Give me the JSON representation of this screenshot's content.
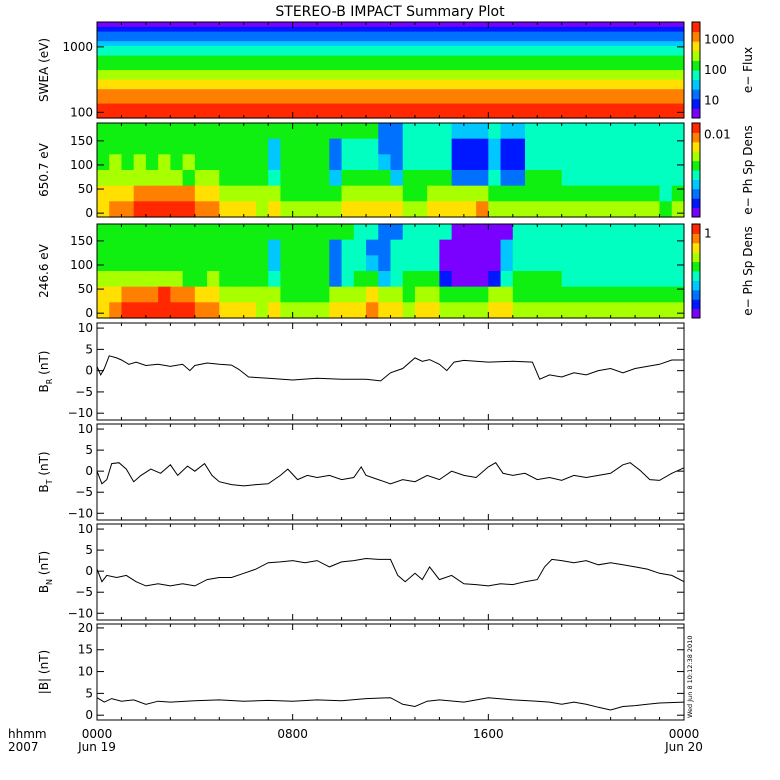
{
  "chart_data": {
    "type": "heatmap",
    "title": "STEREO-B IMPACT Summary Plot",
    "x_axis": {
      "unit_label": "hhmm",
      "year_label": "2007",
      "range_hours": [
        0,
        24
      ],
      "ticks": [
        {
          "hour": 0,
          "label": "0000",
          "sub": "Jun 19"
        },
        {
          "hour": 8,
          "label": "0800",
          "sub": ""
        },
        {
          "hour": 16,
          "label": "1600",
          "sub": ""
        },
        {
          "hour": 24,
          "label": "0000",
          "sub": "Jun 20"
        }
      ]
    },
    "timestamp": "Wed Jun  8 10:12:38 2010",
    "colormap": [
      "#7a00ff",
      "#0018ff",
      "#0070ff",
      "#00c8ff",
      "#00ffc0",
      "#10f010",
      "#a8ff00",
      "#ffe000",
      "#ff8000",
      "#ff2800"
    ],
    "panels": [
      {
        "id": "swea",
        "type": "heatmap",
        "ylabel": "SWEA (eV)",
        "scale": "log",
        "ylim": [
          82,
          2400
        ],
        "yticks": [
          {
            "v": 100,
            "l": "100"
          },
          {
            "v": 1000,
            "l": "1000"
          }
        ],
        "colorbar": {
          "label": "e− Flux",
          "ticks": [
            {
              "f": 0.82,
              "l": "1000"
            },
            {
              "f": 0.5,
              "l": "100"
            },
            {
              "f": 0.18,
              "l": "10"
            }
          ]
        },
        "energy_profile_top_to_bottom": [
          0,
          1,
          2,
          2,
          3,
          4,
          4,
          5,
          5,
          5,
          6,
          6,
          7,
          7,
          8,
          8,
          8,
          9,
          9,
          9
        ]
      },
      {
        "id": "pad650",
        "type": "heatmap",
        "ylabel": "650.7 eV",
        "scale": "linear",
        "ylim": [
          -8,
          187
        ],
        "yticks": [
          {
            "v": 0,
            "l": "0"
          },
          {
            "v": 50,
            "l": "50"
          },
          {
            "v": 100,
            "l": "100"
          },
          {
            "v": 150,
            "l": "150"
          }
        ],
        "colorbar": {
          "label": "e− Ph Sp Dens",
          "ticks": [
            {
              "f": 0.88,
              "l": "0.01"
            }
          ]
        },
        "rows_top_to_bottom": [
          "555555555555555555555552244443334334444444444444",
          "555555555555553555524442244441113114444444444444",
          "565656565555553555524443244441113114444444444444",
          "666666656655554555535555355552224225554444444444",
          "777888887766666555556666655666665555555555555545",
          "788999998877767666667777766777786666666666666656"
        ]
      },
      {
        "id": "pad246",
        "type": "heatmap",
        "ylabel": "246.6 eV",
        "scale": "linear",
        "ylim": [
          -10,
          185
        ],
        "yticks": [
          {
            "v": 0,
            "l": "0"
          },
          {
            "v": 50,
            "l": "50"
          },
          {
            "v": 100,
            "l": "100"
          },
          {
            "v": 150,
            "l": "150"
          }
        ],
        "colorbar": {
          "label": "e− Ph Sp Dens",
          "ticks": [
            {
              "f": 0.9,
              "l": "1"
            }
          ]
        },
        "rows_top_to_bottom": [
          "555555555555555555555442244440000044444444444444",
          "555555555555553555524422444400000344444444444444",
          "555555555555553555524432444400000344444444444444",
          "666666655655554555524553455510001455554444444444",
          "778889887766666555566676656655556655555555555555",
          "789999998877767666677787767766667766666666666666"
        ]
      },
      {
        "id": "br",
        "type": "line",
        "ylabel": "B",
        "ysub": "R",
        "yunit": " (nT)",
        "ylim": [
          -11.6,
          11.2
        ],
        "yticks": [
          {
            "v": -10,
            "l": "−10"
          },
          {
            "v": -5,
            "l": "−5"
          },
          {
            "v": 0,
            "l": "0"
          },
          {
            "v": 5,
            "l": "5"
          },
          {
            "v": 10,
            "l": "10"
          }
        ],
        "points": [
          [
            0,
            1
          ],
          [
            0.15,
            -1
          ],
          [
            0.3,
            0.5
          ],
          [
            0.5,
            3.5
          ],
          [
            0.8,
            3
          ],
          [
            1,
            2.5
          ],
          [
            1.3,
            1.5
          ],
          [
            1.6,
            2
          ],
          [
            2,
            1.2
          ],
          [
            2.5,
            1.5
          ],
          [
            3,
            1
          ],
          [
            3.5,
            1.5
          ],
          [
            3.8,
            0
          ],
          [
            4,
            1.2
          ],
          [
            4.5,
            1.8
          ],
          [
            5,
            1.5
          ],
          [
            5.5,
            1.3
          ],
          [
            5.8,
            0.3
          ],
          [
            6.2,
            -1.5
          ],
          [
            7,
            -1.8
          ],
          [
            8,
            -2.2
          ],
          [
            9,
            -1.8
          ],
          [
            10,
            -2
          ],
          [
            11,
            -2
          ],
          [
            11.6,
            -2.4
          ],
          [
            12,
            -0.5
          ],
          [
            12.5,
            0.5
          ],
          [
            13,
            3
          ],
          [
            13.3,
            2.2
          ],
          [
            13.6,
            2.6
          ],
          [
            14,
            1.5
          ],
          [
            14.3,
            0
          ],
          [
            14.6,
            2
          ],
          [
            15,
            2.4
          ],
          [
            16,
            2
          ],
          [
            17,
            2.2
          ],
          [
            17.8,
            2
          ],
          [
            18.1,
            -2
          ],
          [
            18.5,
            -1
          ],
          [
            19,
            -1.5
          ],
          [
            19.5,
            -0.5
          ],
          [
            20,
            -1
          ],
          [
            20.5,
            0
          ],
          [
            21,
            0.5
          ],
          [
            21.5,
            -0.5
          ],
          [
            22,
            0.5
          ],
          [
            22.5,
            1
          ],
          [
            23,
            1.5
          ],
          [
            23.5,
            2.5
          ],
          [
            24,
            2.5
          ]
        ]
      },
      {
        "id": "bt",
        "type": "line",
        "ylabel": "B",
        "ysub": "T",
        "yunit": " (nT)",
        "ylim": [
          -11.6,
          11.2
        ],
        "yticks": [
          {
            "v": -10,
            "l": "−10"
          },
          {
            "v": -5,
            "l": "−5"
          },
          {
            "v": 0,
            "l": "0"
          },
          {
            "v": 5,
            "l": "5"
          },
          {
            "v": 10,
            "l": "10"
          }
        ],
        "points": [
          [
            0,
            0
          ],
          [
            0.2,
            -3
          ],
          [
            0.4,
            -2
          ],
          [
            0.6,
            1.8
          ],
          [
            0.9,
            2
          ],
          [
            1.2,
            0.5
          ],
          [
            1.5,
            -2.5
          ],
          [
            1.8,
            -1
          ],
          [
            2.2,
            0.5
          ],
          [
            2.6,
            -0.5
          ],
          [
            3,
            1.5
          ],
          [
            3.3,
            -1
          ],
          [
            3.7,
            1.2
          ],
          [
            4,
            0
          ],
          [
            4.4,
            1.8
          ],
          [
            4.7,
            -1
          ],
          [
            5,
            -2.5
          ],
          [
            5.5,
            -3.2
          ],
          [
            6,
            -3.5
          ],
          [
            6.5,
            -3.2
          ],
          [
            7,
            -3
          ],
          [
            7.5,
            -1
          ],
          [
            7.8,
            0.5
          ],
          [
            8.2,
            -2
          ],
          [
            8.6,
            -1
          ],
          [
            9,
            -1.5
          ],
          [
            9.5,
            -1
          ],
          [
            10,
            -2
          ],
          [
            10.5,
            -1.5
          ],
          [
            10.8,
            1
          ],
          [
            11,
            -1
          ],
          [
            11.5,
            -2
          ],
          [
            12,
            -3
          ],
          [
            12.5,
            -2
          ],
          [
            13,
            -2.5
          ],
          [
            13.5,
            -1
          ],
          [
            14,
            -2
          ],
          [
            14.5,
            0
          ],
          [
            15,
            -1
          ],
          [
            15.5,
            -1.5
          ],
          [
            16,
            1
          ],
          [
            16.3,
            2
          ],
          [
            16.6,
            -0.5
          ],
          [
            17,
            -1
          ],
          [
            17.5,
            -0.5
          ],
          [
            18,
            -2
          ],
          [
            18.5,
            -1.5
          ],
          [
            19,
            -2.2
          ],
          [
            19.5,
            -1
          ],
          [
            20,
            -1.5
          ],
          [
            20.5,
            -1
          ],
          [
            21,
            -0.5
          ],
          [
            21.5,
            1.5
          ],
          [
            21.8,
            2
          ],
          [
            22.2,
            0.2
          ],
          [
            22.6,
            -2
          ],
          [
            23,
            -2.2
          ],
          [
            23.5,
            -0.5
          ],
          [
            24,
            0.8
          ]
        ]
      },
      {
        "id": "bn",
        "type": "line",
        "ylabel": "B",
        "ysub": "N",
        "yunit": " (nT)",
        "ylim": [
          -11.6,
          11.2
        ],
        "yticks": [
          {
            "v": -10,
            "l": "−10"
          },
          {
            "v": -5,
            "l": "−5"
          },
          {
            "v": 0,
            "l": "0"
          },
          {
            "v": 5,
            "l": "5"
          },
          {
            "v": 10,
            "l": "10"
          }
        ],
        "points": [
          [
            0,
            0.5
          ],
          [
            0.2,
            -2.5
          ],
          [
            0.4,
            -1
          ],
          [
            0.8,
            -1.5
          ],
          [
            1.2,
            -1
          ],
          [
            1.6,
            -2.5
          ],
          [
            2,
            -3.5
          ],
          [
            2.5,
            -3
          ],
          [
            3,
            -3.5
          ],
          [
            3.5,
            -3
          ],
          [
            4,
            -3.5
          ],
          [
            4.5,
            -2
          ],
          [
            5,
            -1.5
          ],
          [
            5.5,
            -1.5
          ],
          [
            6,
            -0.5
          ],
          [
            6.5,
            0.5
          ],
          [
            7,
            2
          ],
          [
            7.5,
            2.2
          ],
          [
            8,
            2.5
          ],
          [
            8.5,
            2
          ],
          [
            9,
            2.5
          ],
          [
            9.5,
            1
          ],
          [
            10,
            2.2
          ],
          [
            10.5,
            2.5
          ],
          [
            11,
            3
          ],
          [
            11.5,
            2.8
          ],
          [
            12,
            2.8
          ],
          [
            12.3,
            -1
          ],
          [
            12.6,
            -2.5
          ],
          [
            13,
            -0.5
          ],
          [
            13.3,
            -2
          ],
          [
            13.6,
            1
          ],
          [
            14,
            -2
          ],
          [
            14.5,
            -1
          ],
          [
            15,
            -3
          ],
          [
            15.5,
            -3.2
          ],
          [
            16,
            -3.5
          ],
          [
            16.5,
            -3
          ],
          [
            17,
            -3.2
          ],
          [
            17.5,
            -2.5
          ],
          [
            18,
            -2
          ],
          [
            18.3,
            1
          ],
          [
            18.6,
            2.8
          ],
          [
            19,
            2.5
          ],
          [
            19.5,
            2
          ],
          [
            20,
            2.5
          ],
          [
            20.5,
            1.5
          ],
          [
            21,
            2
          ],
          [
            21.5,
            1.5
          ],
          [
            22,
            1
          ],
          [
            22.5,
            0.5
          ],
          [
            23,
            -0.5
          ],
          [
            23.5,
            -1
          ],
          [
            24,
            -2.5
          ]
        ]
      },
      {
        "id": "bmag",
        "type": "line",
        "ylabel": "|B| (nT)",
        "ylim": [
          -1.1,
          20.9
        ],
        "yticks": [
          {
            "v": 0,
            "l": "0"
          },
          {
            "v": 5,
            "l": "5"
          },
          {
            "v": 10,
            "l": "10"
          },
          {
            "v": 15,
            "l": "15"
          },
          {
            "v": 20,
            "l": "20"
          }
        ],
        "points": [
          [
            0,
            4
          ],
          [
            0.3,
            3
          ],
          [
            0.6,
            3.8
          ],
          [
            1,
            3.2
          ],
          [
            1.5,
            3.5
          ],
          [
            2,
            2.5
          ],
          [
            2.5,
            3.2
          ],
          [
            3,
            3
          ],
          [
            4,
            3.3
          ],
          [
            5,
            3.5
          ],
          [
            6,
            3.2
          ],
          [
            7,
            3.4
          ],
          [
            8,
            3.2
          ],
          [
            9,
            3.5
          ],
          [
            10,
            3.3
          ],
          [
            11,
            3.8
          ],
          [
            12,
            4
          ],
          [
            12.5,
            2.5
          ],
          [
            13,
            2
          ],
          [
            13.5,
            3.2
          ],
          [
            14,
            3.5
          ],
          [
            15,
            3
          ],
          [
            16,
            4
          ],
          [
            17,
            3.5
          ],
          [
            18,
            3.2
          ],
          [
            18.5,
            3
          ],
          [
            19,
            2.5
          ],
          [
            19.5,
            3
          ],
          [
            20,
            2.5
          ],
          [
            20.5,
            1.8
          ],
          [
            21,
            1.2
          ],
          [
            21.5,
            2
          ],
          [
            22,
            2.2
          ],
          [
            22.5,
            2.5
          ],
          [
            23,
            2.8
          ],
          [
            24,
            3
          ]
        ]
      }
    ]
  }
}
